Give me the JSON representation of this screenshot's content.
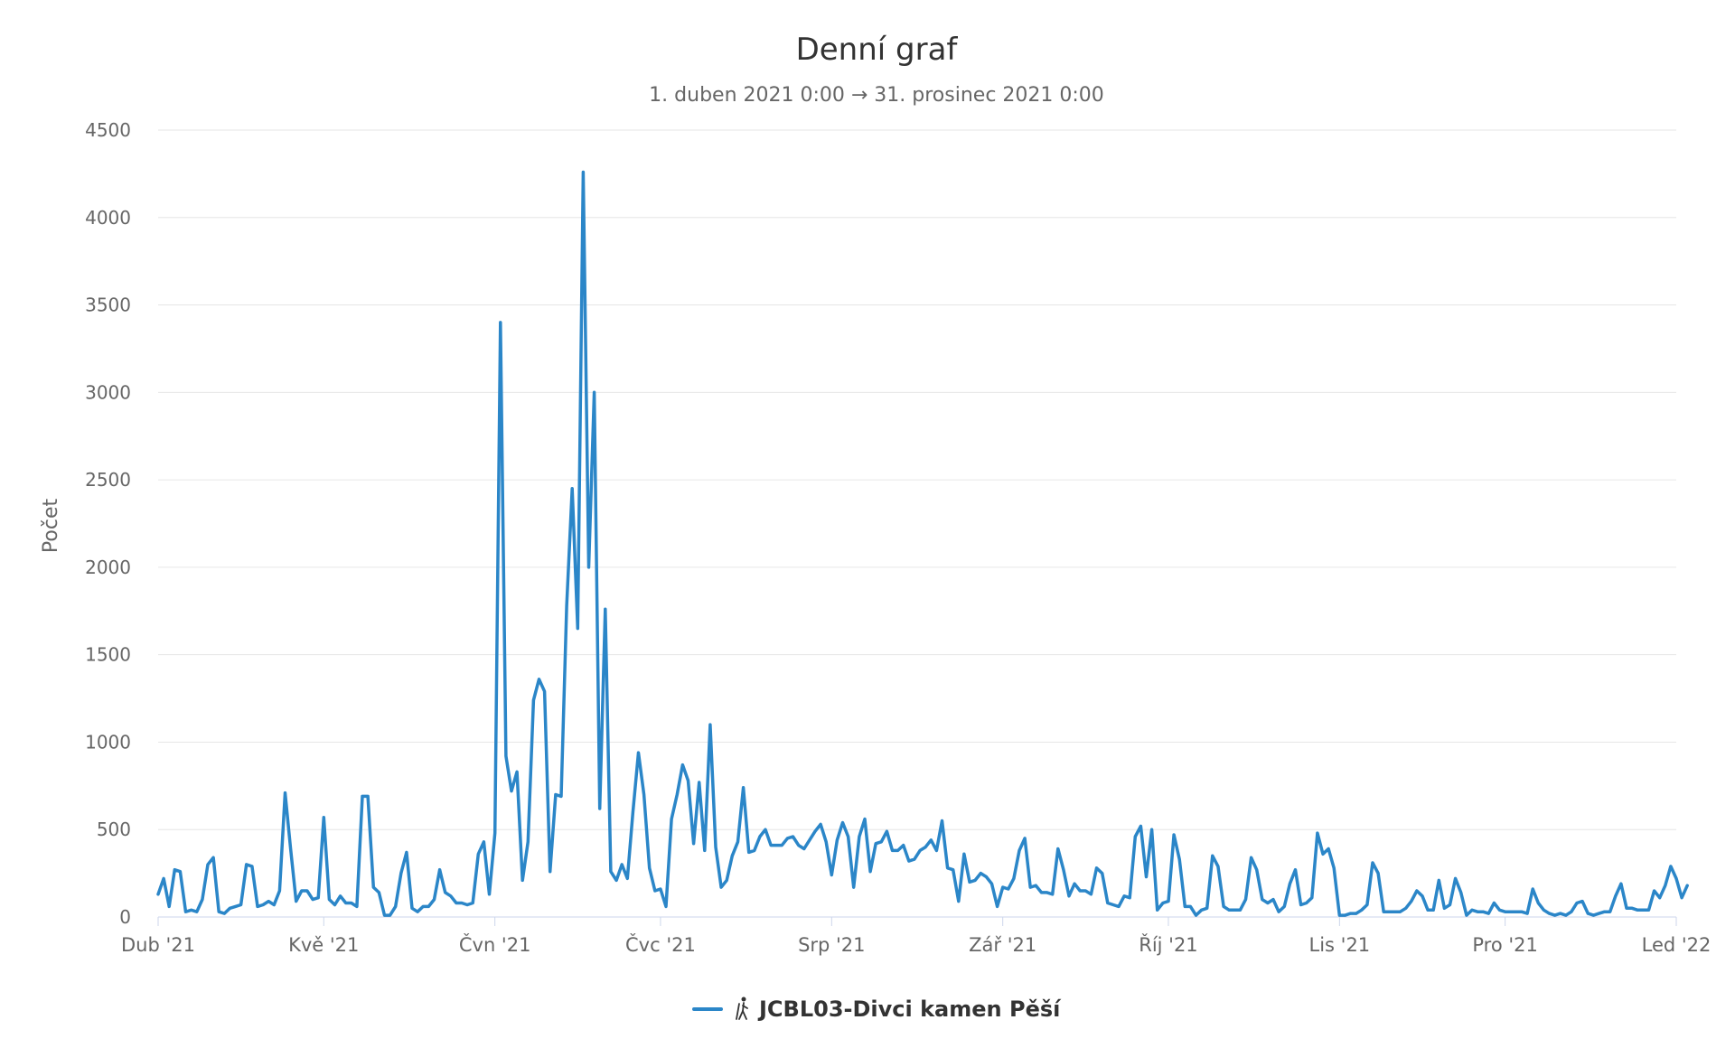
{
  "chart_data": {
    "type": "line",
    "title": "Denní graf",
    "subtitle": "1. duben 2021 0:00 → 31. prosinec 2021 0:00",
    "ylabel": "Počet",
    "xlabel": "",
    "ylim": [
      0,
      4500
    ],
    "yticks": [
      0,
      500,
      1000,
      1500,
      2000,
      2500,
      3000,
      3500,
      4000,
      4500
    ],
    "xlim": [
      "2021-04-01",
      "2022-01-01"
    ],
    "xticks": [
      {
        "date": "2021-04-01",
        "label": "Dub '21"
      },
      {
        "date": "2021-05-01",
        "label": "Kvě '21"
      },
      {
        "date": "2021-06-01",
        "label": "Čvn '21"
      },
      {
        "date": "2021-07-01",
        "label": "Čvc '21"
      },
      {
        "date": "2021-08-01",
        "label": "Srp '21"
      },
      {
        "date": "2021-09-01",
        "label": "Zář '21"
      },
      {
        "date": "2021-10-01",
        "label": "Říj '21"
      },
      {
        "date": "2021-11-01",
        "label": "Lis '21"
      },
      {
        "date": "2021-12-01",
        "label": "Pro '21"
      },
      {
        "date": "2022-01-01",
        "label": "Led '22"
      }
    ],
    "grid": true,
    "legend_position": "bottom-center",
    "color": "#2b86c8",
    "legend_icon": "hiker-icon",
    "series": [
      {
        "name": "JCBL03-Divci kamen Pěší",
        "x_start": "2021-04-01",
        "x_step": "1 day",
        "values": [
          130,
          220,
          60,
          270,
          260,
          30,
          40,
          30,
          100,
          300,
          340,
          30,
          20,
          50,
          60,
          70,
          300,
          290,
          60,
          70,
          90,
          70,
          150,
          710,
          390,
          90,
          150,
          150,
          100,
          110,
          570,
          100,
          70,
          120,
          80,
          80,
          60,
          690,
          690,
          170,
          140,
          10,
          10,
          60,
          250,
          370,
          50,
          30,
          60,
          60,
          100,
          270,
          140,
          120,
          80,
          80,
          70,
          80,
          360,
          430,
          130,
          480,
          3400,
          920,
          720,
          830,
          210,
          430,
          1240,
          1360,
          1290,
          260,
          700,
          690,
          1780,
          2450,
          1650,
          4260,
          2000,
          3000,
          620,
          1760,
          260,
          210,
          300,
          220,
          600,
          940,
          700,
          280,
          150,
          160,
          60,
          560,
          700,
          870,
          780,
          420,
          770,
          380,
          1100,
          400,
          170,
          210,
          350,
          430,
          740,
          370,
          380,
          460,
          500,
          410,
          410,
          410,
          450,
          460,
          410,
          390,
          440,
          490,
          530,
          430,
          240,
          440,
          540,
          460,
          170,
          460,
          560,
          260,
          420,
          430,
          490,
          380,
          380,
          410,
          320,
          330,
          380,
          400,
          440,
          380,
          550,
          280,
          270,
          90,
          360,
          200,
          210,
          250,
          230,
          190,
          60,
          170,
          160,
          220,
          380,
          450,
          170,
          180,
          140,
          140,
          130,
          390,
          270,
          120,
          190,
          150,
          150,
          130,
          280,
          250,
          80,
          70,
          60,
          120,
          110,
          460,
          520,
          230,
          500,
          40,
          80,
          90,
          470,
          330,
          60,
          60,
          10,
          40,
          50,
          350,
          290,
          60,
          40,
          40,
          40,
          100,
          340,
          270,
          100,
          80,
          100,
          30,
          60,
          190,
          270,
          70,
          80,
          110,
          480,
          360,
          390,
          280,
          10,
          10,
          20,
          20,
          40,
          70,
          310,
          250,
          30,
          30,
          30,
          30,
          50,
          90,
          150,
          120,
          40,
          40,
          210,
          50,
          70,
          220,
          140,
          10,
          40,
          30,
          30,
          20,
          80,
          40,
          30,
          30,
          30,
          30,
          20,
          160,
          80,
          40,
          20,
          10,
          20,
          10,
          30,
          80,
          90,
          20,
          10,
          20,
          30,
          30,
          120,
          190,
          50,
          50,
          40,
          40,
          40,
          150,
          110,
          180,
          290,
          220,
          110,
          180
        ]
      }
    ]
  }
}
